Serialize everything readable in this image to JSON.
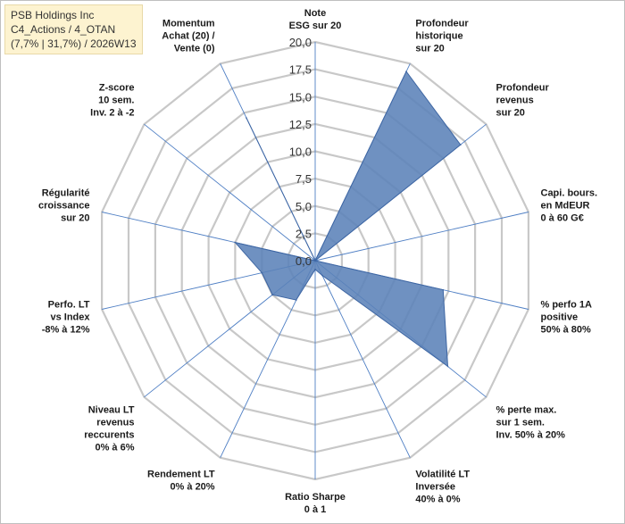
{
  "title": {
    "line1": "PSB Holdings Inc",
    "line2": "C4_Actions / 4_OTAN",
    "line3": "(7,7% | 31,7%) / 2026W13"
  },
  "chart_data": {
    "type": "radar",
    "rlim": [
      0,
      20
    ],
    "ticks": [
      "0,0",
      "2,5",
      "5,0",
      "7,5",
      "10,0",
      "12,5",
      "15,0",
      "17,5",
      "20,0"
    ],
    "tick_values": [
      0,
      2.5,
      5,
      7.5,
      10,
      12.5,
      15,
      17.5,
      20
    ],
    "grid": true,
    "colors": {
      "fill": "#5b82b8",
      "stroke": "#3e66a3",
      "grid": "#c8c8c8",
      "spoke": "#4f7fc4"
    },
    "axes": [
      {
        "label": [
          "Note",
          "ESG sur 20"
        ],
        "value": 0
      },
      {
        "label": [
          "Profondeur",
          "historique",
          "sur 20"
        ],
        "value": 19.2
      },
      {
        "label": [
          "Profondeur",
          "revenus",
          "sur 20"
        ],
        "value": 17.0
      },
      {
        "label": [
          "Capi. bours.",
          "en MdEUR",
          "0 à 60 G€"
        ],
        "value": 0
      },
      {
        "label": [
          "% perfo 1A",
          "positive",
          "50% à 80%"
        ],
        "value": 12.0
      },
      {
        "label": [
          "% perte max.",
          "sur 1 sem.",
          "Inv. 50% à 20%"
        ],
        "value": 15.5
      },
      {
        "label": [
          "Volatilité LT",
          "Inversée",
          "40% à 0%"
        ],
        "value": 1.5
      },
      {
        "label": [
          "Ratio Sharpe",
          "0 à 1"
        ],
        "value": 0.8
      },
      {
        "label": [
          "Rendement LT",
          "0% à 20%"
        ],
        "value": 4.0
      },
      {
        "label": [
          "Niveau LT",
          "revenus",
          "reccurents",
          "0% à 6%"
        ],
        "value": 5.0
      },
      {
        "label": [
          "Perfo. LT",
          "vs Index",
          "-8% à 12%"
        ],
        "value": 5.0
      },
      {
        "label": [
          "Régularité",
          "croissance",
          "sur 20"
        ],
        "value": 7.5
      },
      {
        "label": [
          "Z-score",
          "10 sem.",
          "Inv. 2 à -2"
        ],
        "value": 0
      },
      {
        "label": [
          "Momentum",
          "Achat (20) /",
          "Vente (0)"
        ],
        "value": 14.5
      }
    ]
  }
}
